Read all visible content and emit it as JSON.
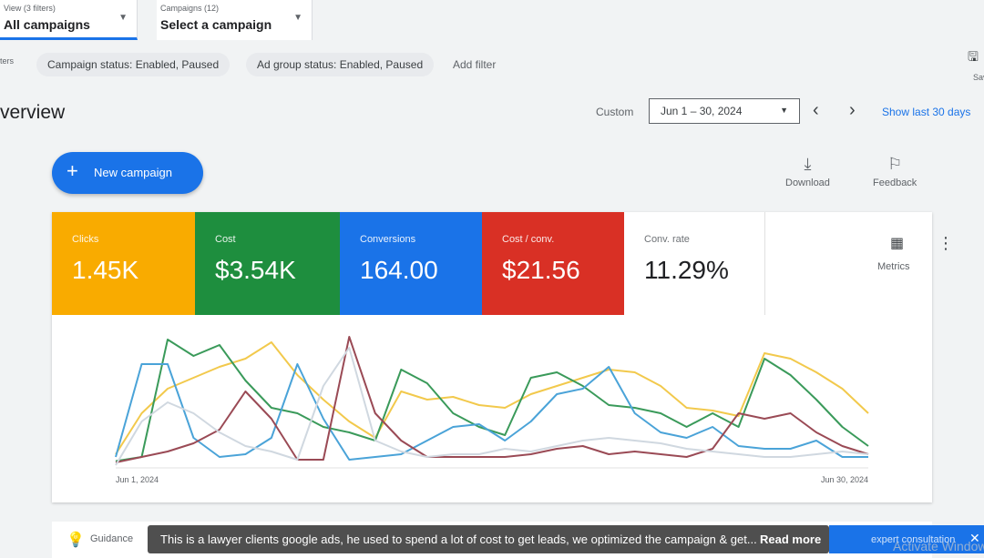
{
  "topbar": {
    "view_label": "View (3 filters)",
    "view_value": "All campaigns",
    "campaigns_label": "Campaigns (12)",
    "campaigns_value": "Select a campaign"
  },
  "filters": {
    "side_label": "ters",
    "chips": [
      "Campaign status: Enabled, Paused",
      "Ad group status: Enabled, Paused"
    ],
    "add_filter": "Add filter",
    "right_label": "Sav"
  },
  "page_title": "verview",
  "date": {
    "custom_label": "Custom",
    "range": "Jun 1 – 30, 2024",
    "show_last": "Show last 30 days"
  },
  "new_campaign": "New campaign",
  "tools": {
    "download": "Download",
    "feedback": "Feedback"
  },
  "metrics": [
    {
      "label": "Clicks",
      "value": "1.45K",
      "color": "#f9ab00"
    },
    {
      "label": "Cost",
      "value": "$3.54K",
      "color": "#1e8e3e"
    },
    {
      "label": "Conversions",
      "value": "164.00",
      "color": "#1a73e8"
    },
    {
      "label": "Cost / conv.",
      "value": "$21.56",
      "color": "#d93025"
    },
    {
      "label": "Conv. rate",
      "value": "11.29%",
      "color": "#ffffff"
    }
  ],
  "metrics_button": "Metrics",
  "chart_data": {
    "type": "line",
    "x_start_label": "Jun 1, 2024",
    "x_end_label": "Jun 30, 2024",
    "series": [
      {
        "color": "#f2c94c",
        "values": [
          10,
          40,
          58,
          66,
          74,
          80,
          92,
          68,
          50,
          34,
          22,
          56,
          50,
          52,
          46,
          44,
          54,
          60,
          66,
          72,
          70,
          60,
          44,
          42,
          38,
          84,
          80,
          70,
          58,
          40
        ]
      },
      {
        "color": "#3a9a5a",
        "values": [
          5,
          8,
          94,
          82,
          90,
          64,
          44,
          40,
          30,
          26,
          20,
          72,
          62,
          40,
          30,
          24,
          66,
          70,
          60,
          46,
          44,
          40,
          30,
          40,
          30,
          80,
          68,
          50,
          30,
          16
        ]
      },
      {
        "color": "#4aa3d8",
        "values": [
          8,
          76,
          76,
          22,
          8,
          10,
          22,
          76,
          36,
          6,
          8,
          10,
          20,
          30,
          32,
          20,
          34,
          54,
          58,
          74,
          40,
          26,
          22,
          30,
          16,
          14,
          14,
          20,
          8,
          8
        ]
      },
      {
        "color": "#9a4a55",
        "values": [
          4,
          8,
          12,
          18,
          28,
          56,
          36,
          6,
          6,
          96,
          40,
          20,
          8,
          8,
          8,
          8,
          10,
          14,
          16,
          10,
          12,
          10,
          8,
          14,
          40,
          36,
          40,
          26,
          16,
          10
        ]
      },
      {
        "color": "#d0d8e0",
        "values": [
          2,
          34,
          48,
          40,
          26,
          16,
          12,
          6,
          60,
          88,
          20,
          12,
          8,
          10,
          10,
          14,
          12,
          16,
          20,
          22,
          20,
          18,
          14,
          12,
          10,
          8,
          8,
          10,
          12,
          10
        ]
      }
    ],
    "ylim": [
      0,
      100
    ]
  },
  "bottom": {
    "guidance": "Guidance"
  },
  "caption": {
    "text": "This is a lawyer clients google ads, he used to spend a lot of cost to get leads, we optimized the campaign & get...",
    "read_more": "Read more"
  },
  "cta": {
    "text": "expert consultation"
  },
  "watermark": "Activate Windows"
}
